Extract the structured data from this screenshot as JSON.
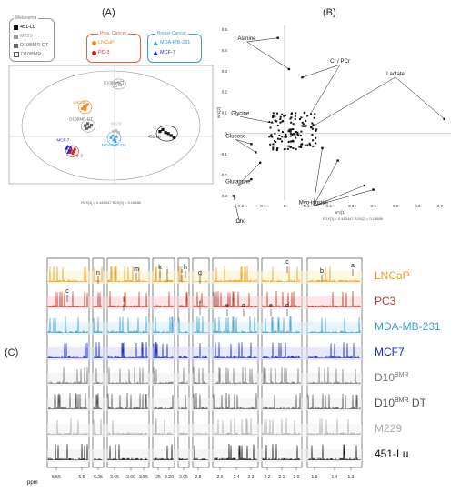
{
  "panels": {
    "a": "(A)",
    "b": "(B)",
    "c": "(C)"
  },
  "legend": {
    "melanoma_title": "Melanoma",
    "melanoma_items": [
      {
        "label": "451-Lu",
        "color": "#111111"
      },
      {
        "label": "M229",
        "color": "#999999"
      },
      {
        "label": "D10BMR DT",
        "color": "#666666"
      },
      {
        "label": "D10BMR",
        "color": "#ffffff"
      }
    ],
    "prost_title": "Pros. Cancer",
    "prost_items": [
      {
        "label": "LNCaP",
        "color": "#f08a24"
      },
      {
        "label": "PC-3",
        "color": "#e31a1c"
      }
    ],
    "breast_title": "Breast Cancer",
    "breast_items": [
      {
        "label": "MDA-MB-231",
        "color": "#3aa0d8"
      },
      {
        "label": "MCF-7",
        "color": "#1a2acc"
      }
    ]
  },
  "chart_data": [
    {
      "type": "scatter",
      "title": "",
      "xlabel": "t[1]",
      "ylabel": "t[2]",
      "xlim": [
        -22,
        22
      ],
      "ylim": [
        -12,
        12
      ],
      "series": [
        {
          "name": "LNCaP",
          "color": "#f08a24",
          "marker": "circle",
          "label": "LNCaP",
          "points": [
            [
              -6.2,
              3.2
            ],
            [
              -5.8,
              3.6
            ],
            [
              -5.5,
              3.4
            ],
            [
              -5.3,
              3.9
            ],
            [
              -5.0,
              4.1
            ],
            [
              -5.6,
              3.0
            ]
          ]
        },
        {
          "name": "PC-3",
          "color": "#e31a1c",
          "marker": "circle",
          "label": "PC-3",
          "points": [
            [
              -8.9,
              -5.6
            ],
            [
              -8.6,
              -5.2
            ],
            [
              -8.3,
              -5.8
            ],
            [
              -8.0,
              -5.4
            ],
            [
              -7.8,
              -5.0
            ]
          ]
        },
        {
          "name": "MCF-7",
          "color": "#1a2acc",
          "marker": "triangle",
          "label": "MCF-7",
          "points": [
            [
              -9.6,
              -4.8
            ],
            [
              -9.3,
              -4.4
            ],
            [
              -9.0,
              -5.2
            ],
            [
              -8.7,
              -4.6
            ],
            [
              -9.2,
              -5.6
            ]
          ]
        },
        {
          "name": "MDA-MB-231",
          "color": "#3aa0d8",
          "marker": "triangle",
          "label": "MDA-MB-231",
          "points": [
            [
              0.0,
              -2.6
            ],
            [
              0.4,
              -2.2
            ],
            [
              0.8,
              -2.8
            ],
            [
              1.2,
              -2.4
            ],
            [
              0.6,
              -3.1
            ],
            [
              1.0,
              -3.4
            ]
          ]
        },
        {
          "name": "D10BMR",
          "color": "#ffffff",
          "marker": "square",
          "label": "D10BMR",
          "points": [
            [
              1.0,
              8.0
            ],
            [
              1.5,
              8.3
            ],
            [
              2.0,
              8.1
            ],
            [
              2.4,
              8.5
            ]
          ]
        },
        {
          "name": "D10BMR DT",
          "color": "#666666",
          "marker": "square",
          "label": "D10BMR DT",
          "points": [
            [
              -5.6,
              -0.2
            ],
            [
              -5.0,
              0.2
            ],
            [
              -4.6,
              -0.5
            ],
            [
              -4.2,
              -0.1
            ],
            [
              -5.2,
              -0.8
            ]
          ]
        },
        {
          "name": "M229",
          "color": "#bbbbbb",
          "marker": "square",
          "label": "M229",
          "points": [
            [
              0.6,
              -1.4
            ],
            [
              1.1,
              -1.2
            ],
            [
              1.6,
              -1.6
            ]
          ]
        },
        {
          "name": "451-Lu",
          "color": "#111111",
          "marker": "square",
          "label": "451-Lu",
          "points": [
            [
              10.6,
              -1.4
            ],
            [
              11.2,
              -1.0
            ],
            [
              11.8,
              -1.6
            ],
            [
              12.4,
              -1.8
            ],
            [
              13.0,
              -2.2
            ],
            [
              13.6,
              -2.6
            ]
          ]
        }
      ],
      "footer": "R2X[1] = 0.445347  R2X[2] = 0.16886"
    },
    {
      "type": "scatter",
      "title": "",
      "xlabel": "w*c[1]",
      "ylabel": "w*c[2]",
      "xlim": [
        -0.25,
        0.75
      ],
      "ylim": [
        -0.32,
        0.52
      ],
      "x_ticks": [
        -0.2,
        -0.1,
        0,
        0.1,
        0.2,
        0.3,
        0.4,
        0.5,
        0.6,
        0.7
      ],
      "y_ticks": [
        -0.3,
        -0.2,
        -0.1,
        0,
        0.1,
        0.2,
        0.3,
        0.4,
        0.5
      ],
      "annotations": [
        "Alanine",
        "Cr / PCr",
        "Lactate",
        "Glycine",
        "Glucose",
        "Glutamine",
        "Myo-inositol",
        "tCho"
      ],
      "series": [
        {
          "name": "loadings",
          "color": "#111111"
        }
      ],
      "footer": "R2X[1] = 0.445347  R2X[2] = 0.16886"
    },
    {
      "type": "line",
      "title": "",
      "xlabel": "ppm",
      "samples": [
        "LNCaP",
        "PC3",
        "MDA-MB-231",
        "MCF7",
        "D10BMR",
        "D10BMR DT",
        "M229",
        "451-Lu"
      ],
      "sample_colors": [
        "#e8a020",
        "#c0392b",
        "#3aa0d8",
        "#1a2acc",
        "#777777",
        "#555555",
        "#aaaaaa",
        "#111111"
      ],
      "peak_letters": [
        "a",
        "b",
        "c",
        "d",
        "e",
        "f",
        "g",
        "h",
        "i",
        "j",
        "k",
        "m",
        "n"
      ],
      "x_tick_labels": [
        "5.55",
        "5.5",
        "5.25",
        "3.65",
        "3.60",
        "3.55",
        "25",
        "3.20",
        "3.05",
        "2.8",
        "2.6",
        "2.4",
        "2.3",
        "2.2",
        "2.1",
        "2.0",
        "1.5",
        "1.4",
        "1.3"
      ]
    }
  ],
  "nmr_label_parts": [
    {
      "base": "LNCaP",
      "sup": ""
    },
    {
      "base": "PC3",
      "sup": ""
    },
    {
      "base": "MDA-MB-231",
      "sup": ""
    },
    {
      "base": "MCF7",
      "sup": ""
    },
    {
      "base": "D10",
      "sup": "BMR"
    },
    {
      "base": "D10",
      "sup": "BMR",
      "suffix": " DT"
    },
    {
      "base": "M229",
      "sup": ""
    },
    {
      "base": "451-Lu",
      "sup": ""
    }
  ]
}
